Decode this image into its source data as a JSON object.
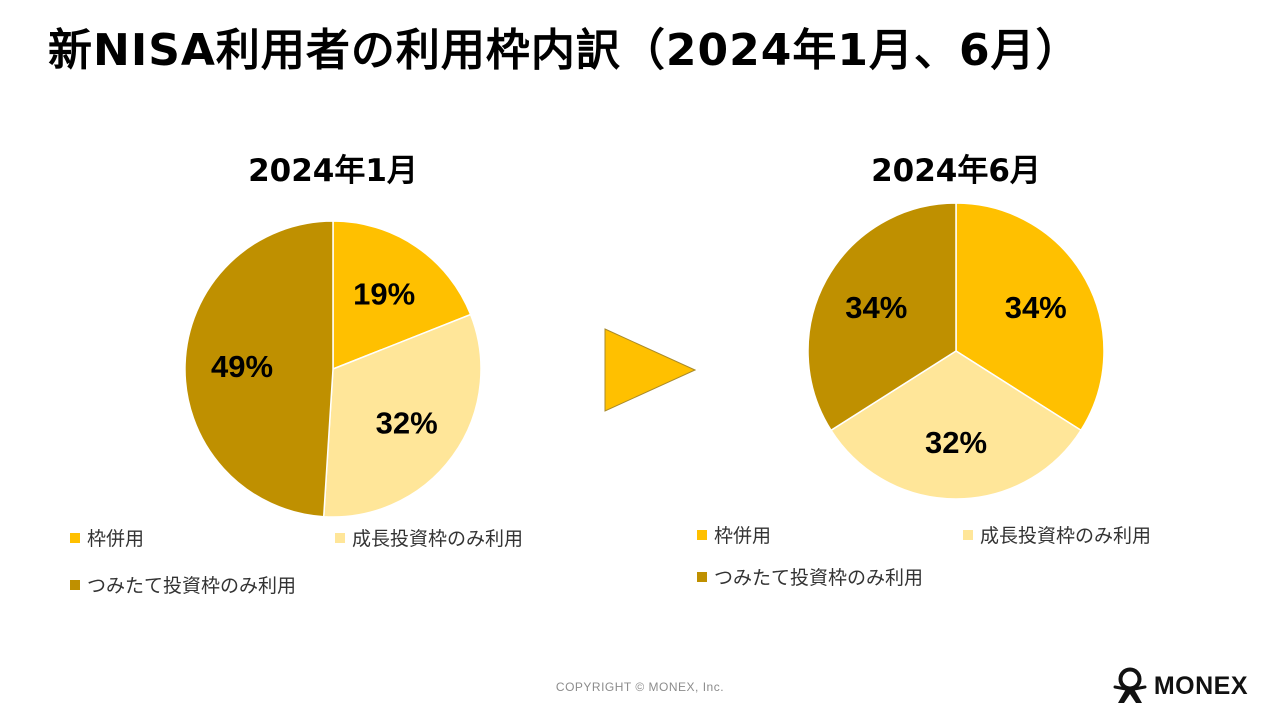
{
  "title": "新NISA利用者の利用枠内訳（2024年1月、6月）",
  "colors": {
    "combined": "#FFC000",
    "growth_only": "#FFE699",
    "tsumitate_only": "#BF9000",
    "arrow": "#FFC000"
  },
  "chart_data": [
    {
      "type": "pie",
      "title": "2024年1月",
      "categories": [
        "枠併用",
        "成長投資枠のみ利用",
        "つみたて投資枠のみ利用"
      ],
      "values": [
        19,
        32,
        49
      ],
      "labels": [
        "19%",
        "32%",
        "49%"
      ],
      "legend_position": "bottom"
    },
    {
      "type": "pie",
      "title": "2024年6月",
      "categories": [
        "枠併用",
        "成長投資枠のみ利用",
        "つみたて投資枠のみ利用"
      ],
      "values": [
        34,
        32,
        34
      ],
      "labels": [
        "34%",
        "32%",
        "34%"
      ],
      "legend_position": "bottom"
    }
  ],
  "footer": {
    "copyright": "COPYRIGHT © MONEX, Inc.",
    "logo_text": "MONEX"
  }
}
